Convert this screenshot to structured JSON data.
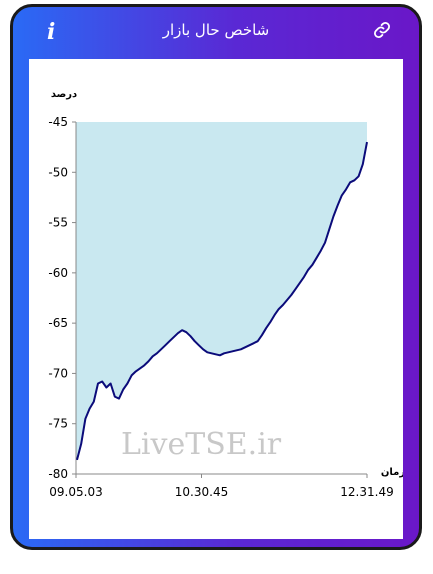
{
  "header": {
    "title": "شاخص حال بازار",
    "info_icon": "info-icon",
    "link_icon": "link-icon"
  },
  "watermark": "LiveTSE.ir",
  "chart_data": {
    "type": "area",
    "ylabel": "درصد",
    "xlabel": "زمان",
    "ylim": [
      -80,
      -45
    ],
    "yticks": [
      -45,
      -50,
      -55,
      -60,
      -65,
      -70,
      -75,
      -80
    ],
    "xticks": [
      "09.05.03",
      "10.30.45",
      "12.31.49"
    ],
    "fill_color": "#c9e8f0",
    "line_color": "#0b0b7a",
    "series": [
      {
        "values": [
          -78.6,
          -77,
          -74.5,
          -73.5,
          -72.8,
          -71,
          -70.8,
          -71.4,
          -71,
          -72.3,
          -72.5,
          -71.6,
          -71,
          -70.2,
          -69.8,
          -69.5,
          -69.2,
          -68.8,
          -68.3,
          -68,
          -67.6,
          -67.2,
          -66.8,
          -66.4,
          -66,
          -65.7,
          -65.9,
          -66.3,
          -66.8,
          -67.2,
          -67.6,
          -67.9,
          -68,
          -68.1,
          -68.2,
          -68,
          -67.9,
          -67.8,
          -67.7,
          -67.6,
          -67.4,
          -67.2,
          -67,
          -66.8,
          -66.2,
          -65.5,
          -64.9,
          -64.2,
          -63.6,
          -63.2,
          -62.7,
          -62.2,
          -61.6,
          -61,
          -60.4,
          -59.7,
          -59.2,
          -58.5,
          -57.8,
          -57,
          -55.7,
          -54.4,
          -53.3,
          -52.3,
          -51.7,
          -51,
          -50.8,
          -50.4,
          -49.2,
          -47
        ]
      }
    ]
  }
}
